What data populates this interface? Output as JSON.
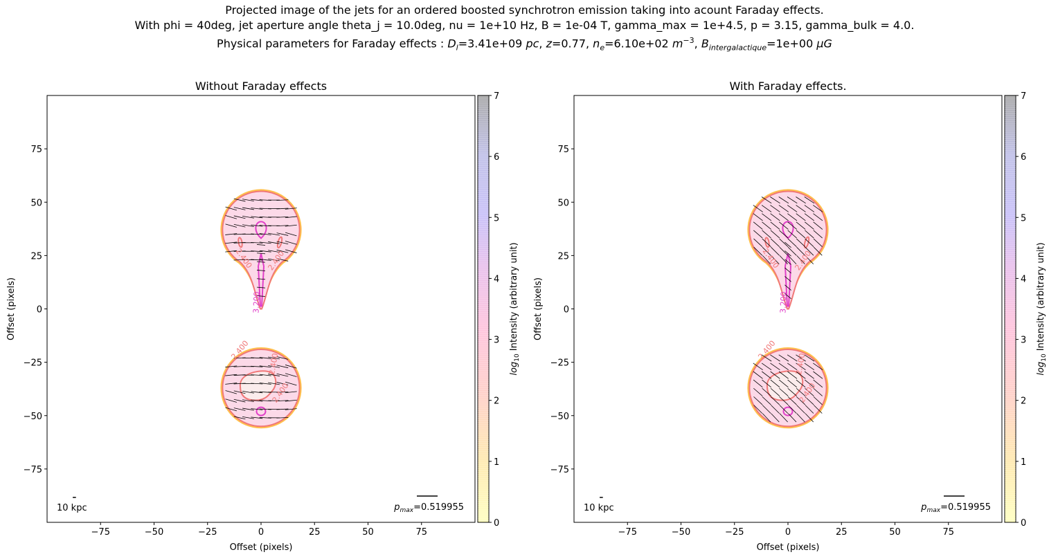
{
  "suptitle": {
    "line1": "Projected image of the jets for an ordered boosted synchrotron emission taking into acount Faraday effects.",
    "line2": "With phi = 40deg, jet aperture angle theta_j = 10.0deg, nu = 1e+10 Hz, B = 1e-04 T, gamma_max = 1e+4.5, p = 3.15, gamma_bulk = 4.0.",
    "line3_prefix": "Physical parameters for Faraday effects : ",
    "line3_dl": "=3.41e+09 ",
    "line3_z": "=0.77, ",
    "line3_ne": "=6.10e+02 ",
    "line3_b": "=1e+00 "
  },
  "colors": {
    "contour_outer": "#ffb020",
    "contour_mid": "#f07878",
    "contour_inner": "#e040c8",
    "fill": "#fcd9e8",
    "fill_core": "#fbecec",
    "vectors": "#000000"
  },
  "chart_data": [
    {
      "type": "heatmap",
      "title": "Without Faraday effects",
      "xlabel": "Offset (pixels)",
      "ylabel": "Offset (pixels)",
      "xlim": [
        -100,
        100
      ],
      "ylim": [
        -100,
        100
      ],
      "xticks": [
        -75,
        -50,
        -25,
        0,
        25,
        50,
        75
      ],
      "yticks": [
        -75,
        -50,
        -25,
        0,
        25,
        50,
        75
      ],
      "scalebar_label": "10 kpc",
      "pmax_value": "=0.519955",
      "colorbar": {
        "label": "Intensity (arbitrary unit)",
        "range": [
          0,
          7
        ],
        "ticks": [
          0,
          1,
          2,
          3,
          4,
          5,
          6,
          7
        ]
      },
      "contour_labels": [
        "2.400",
        "2.400",
        "3.200",
        "2.400",
        "2.400",
        "2.400"
      ],
      "blobs": [
        {
          "center": [
            0,
            37
          ]
        },
        {
          "center": [
            0,
            -37
          ]
        }
      ],
      "vector_angle_deg": -5,
      "faraday": false
    },
    {
      "type": "heatmap",
      "title": "With Faraday effects.",
      "xlabel": "Offset (pixels)",
      "ylabel": "Offset (pixels)",
      "xlim": [
        -100,
        100
      ],
      "ylim": [
        -100,
        100
      ],
      "xticks": [
        -75,
        -50,
        -25,
        0,
        25,
        50,
        75
      ],
      "yticks": [
        -75,
        -50,
        -25,
        0,
        25,
        50,
        75
      ],
      "scalebar_label": "10 kpc",
      "pmax_value": "=0.519955",
      "colorbar": {
        "label": "Intensity (arbitrary unit)",
        "range": [
          0,
          7
        ],
        "ticks": [
          0,
          1,
          2,
          3,
          4,
          5,
          6,
          7
        ]
      },
      "contour_labels": [
        "2.400",
        "2.400",
        "3.200",
        "2.400",
        "2.400",
        "2.400"
      ],
      "blobs": [
        {
          "center": [
            0,
            37
          ]
        },
        {
          "center": [
            0,
            -37
          ]
        }
      ],
      "vector_angle_deg": -40,
      "faraday": true
    }
  ]
}
